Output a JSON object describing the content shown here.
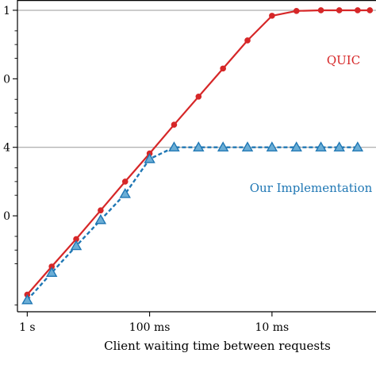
{
  "chart_data": {
    "type": "line",
    "xlabel": "Client waiting time between requests",
    "x_ticks": [
      {
        "label": "1 s",
        "log10_seconds": 0
      },
      {
        "label": "100 ms",
        "log10_seconds": -1
      },
      {
        "label": "10 ms",
        "log10_seconds": -2
      }
    ],
    "x_range_log10_seconds": [
      0.08,
      -2.85
    ],
    "y_scale": "log",
    "y_range_log10": [
      -0.4,
      4.15
    ],
    "y_ticks": [
      {
        "label": "1",
        "log10": 4.0
      },
      {
        "label": "0",
        "log10": 3.0
      },
      {
        "label": "4",
        "log10": 2.0
      },
      {
        "label": "0",
        "log10": 1.0
      }
    ],
    "y_minor_ticks_log10": [
      3.7,
      3.5,
      3.3,
      2.7,
      2.5,
      2.3,
      1.7,
      1.5,
      1.3,
      0.7,
      0.5,
      0.3,
      -0.3
    ],
    "reference_lines_log10": [
      4.0,
      2.0
    ],
    "series": [
      {
        "name": "QUIC",
        "color": "#d62728",
        "marker": "circle",
        "line_style": "solid",
        "points": [
          {
            "log10_seconds": 0.0,
            "log10_y": -0.15
          },
          {
            "log10_seconds": -0.2,
            "log10_y": 0.26
          },
          {
            "log10_seconds": -0.4,
            "log10_y": 0.66
          },
          {
            "log10_seconds": -0.6,
            "log10_y": 1.08
          },
          {
            "log10_seconds": -0.8,
            "log10_y": 1.5
          },
          {
            "log10_seconds": -1.0,
            "log10_y": 1.91
          },
          {
            "log10_seconds": -1.2,
            "log10_y": 2.33
          },
          {
            "log10_seconds": -1.4,
            "log10_y": 2.74
          },
          {
            "log10_seconds": -1.6,
            "log10_y": 3.15
          },
          {
            "log10_seconds": -1.8,
            "log10_y": 3.56
          },
          {
            "log10_seconds": -2.0,
            "log10_y": 3.92
          },
          {
            "log10_seconds": -2.2,
            "log10_y": 3.99
          },
          {
            "log10_seconds": -2.4,
            "log10_y": 4.0
          },
          {
            "log10_seconds": -2.55,
            "log10_y": 4.0
          },
          {
            "log10_seconds": -2.7,
            "log10_y": 4.0
          },
          {
            "log10_seconds": -2.8,
            "log10_y": 4.0
          }
        ]
      },
      {
        "name": "Our Implementation",
        "color": "#1f77b4",
        "marker": "triangle",
        "line_style": "dashed",
        "points": [
          {
            "log10_seconds": 0.0,
            "log10_y": -0.23
          },
          {
            "log10_seconds": -0.2,
            "log10_y": 0.17
          },
          {
            "log10_seconds": -0.4,
            "log10_y": 0.56
          },
          {
            "log10_seconds": -0.6,
            "log10_y": 0.94
          },
          {
            "log10_seconds": -0.8,
            "log10_y": 1.32
          },
          {
            "log10_seconds": -1.0,
            "log10_y": 1.83
          },
          {
            "log10_seconds": -1.2,
            "log10_y": 2.0
          },
          {
            "log10_seconds": -1.4,
            "log10_y": 2.0
          },
          {
            "log10_seconds": -1.6,
            "log10_y": 2.0
          },
          {
            "log10_seconds": -1.8,
            "log10_y": 2.0
          },
          {
            "log10_seconds": -2.0,
            "log10_y": 2.0
          },
          {
            "log10_seconds": -2.2,
            "log10_y": 2.0
          },
          {
            "log10_seconds": -2.4,
            "log10_y": 2.0
          },
          {
            "log10_seconds": -2.55,
            "log10_y": 2.0
          },
          {
            "log10_seconds": -2.7,
            "log10_y": 2.0
          }
        ]
      }
    ],
    "grid": false,
    "legend": "inline-labels"
  }
}
